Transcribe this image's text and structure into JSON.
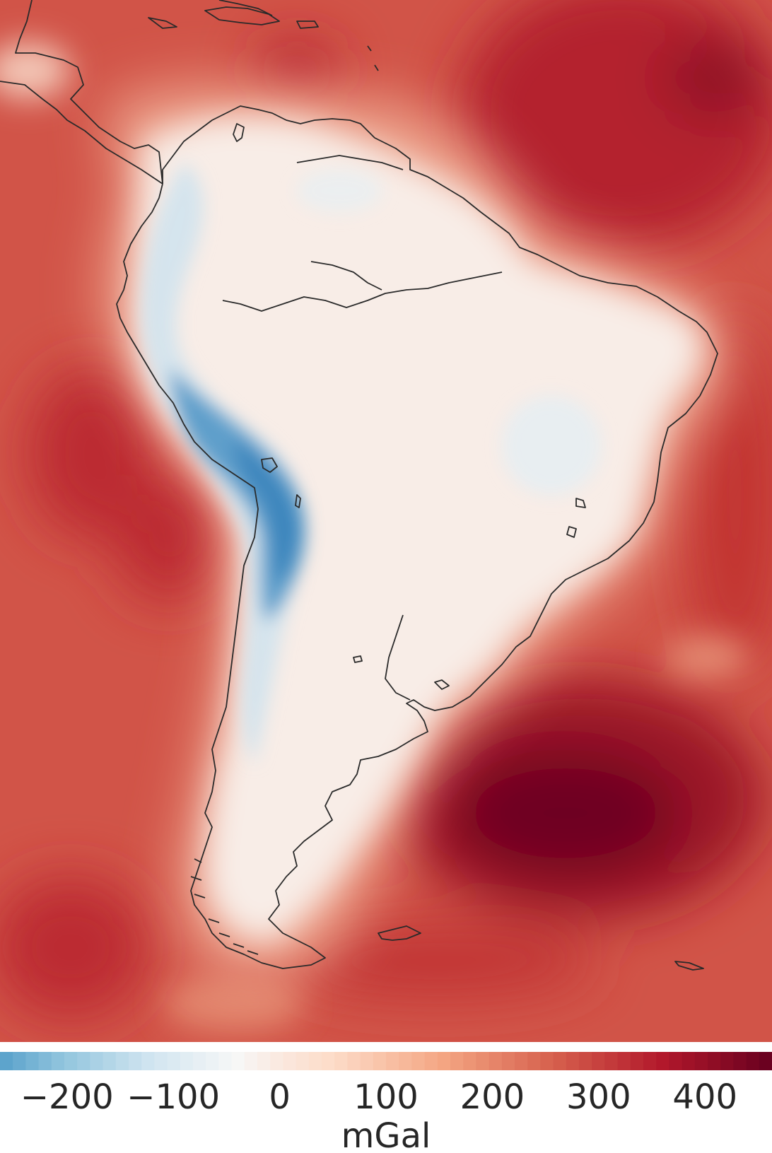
{
  "colorbar": {
    "vmin": -263,
    "vmax": 463,
    "label": "mGal",
    "ticks": [
      {
        "value": -200,
        "label": "−200"
      },
      {
        "value": -100,
        "label": "−100"
      },
      {
        "value": 0,
        "label": "0"
      },
      {
        "value": 100,
        "label": "100"
      },
      {
        "value": 200,
        "label": "200"
      },
      {
        "value": 300,
        "label": "300"
      },
      {
        "value": 400,
        "label": "400"
      }
    ],
    "colormap": [
      "#2166ac",
      "#4393c3",
      "#92c5de",
      "#d1e5f0",
      "#f7f7f7",
      "#fddbc7",
      "#f4a582",
      "#d6604d",
      "#b2182b",
      "#67001f"
    ],
    "zero_color": "#f7f7f7"
  },
  "map": {
    "ocean_color": "#cf4a42",
    "land_color": "#f8efea",
    "coastline_color": "#2a2a2a"
  }
}
